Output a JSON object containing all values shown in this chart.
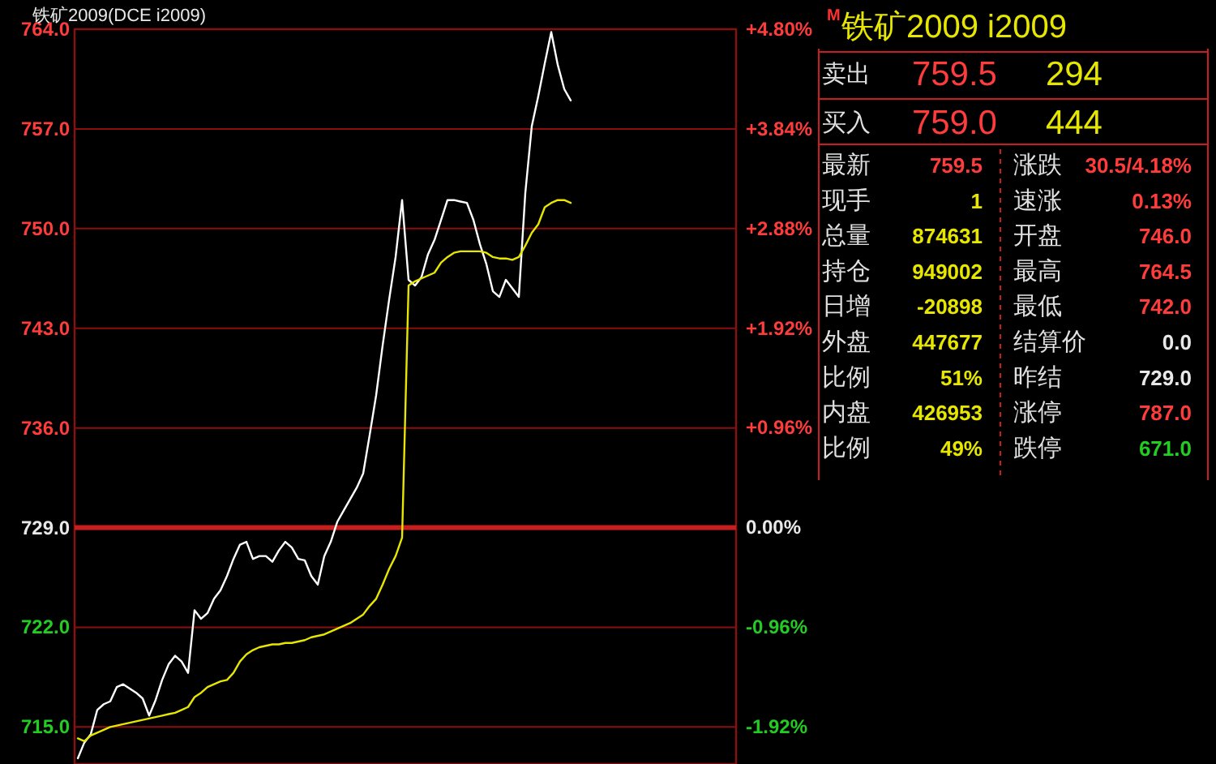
{
  "chart_data": [
    {
      "type": "line",
      "title": "铁矿2009(DCE i2009)",
      "categories": [
        null,
        null,
        null,
        null,
        null,
        null,
        null,
        null,
        null,
        null,
        null,
        null,
        null,
        null,
        null,
        null,
        null,
        null,
        null,
        null,
        null,
        null,
        null,
        null,
        null,
        null,
        null,
        null,
        null,
        null,
        null,
        null,
        null,
        null,
        null,
        null,
        null,
        null,
        null,
        null,
        null,
        null,
        null,
        null,
        null,
        null,
        null,
        null,
        null,
        null,
        null,
        null,
        null,
        null,
        null,
        null,
        null,
        null,
        null,
        null,
        null,
        null,
        null,
        null,
        null,
        null,
        null,
        null,
        null,
        null,
        null,
        null,
        null,
        null,
        null,
        null,
        null,
        null,
        null,
        null,
        null,
        null,
        null,
        null,
        null,
        null,
        null,
        null,
        null,
        null,
        null,
        null,
        null,
        null,
        null,
        null,
        null,
        null,
        null,
        null,
        null,
        null
      ],
      "series": [
        {
          "color": "#ffffff",
          "values": [
            712.8,
            713.9,
            714.5,
            716.2,
            716.6,
            716.8,
            717.8,
            718.0,
            717.7,
            717.4,
            717.0,
            715.8,
            716.9,
            718.3,
            719.4,
            720.0,
            719.6,
            718.8,
            723.2,
            722.6,
            723.0,
            724.0,
            724.6,
            725.6,
            726.8,
            727.8,
            728.0,
            726.8,
            727.0,
            727.0,
            726.6,
            727.4,
            728.0,
            727.6,
            726.8,
            726.7,
            725.6,
            725.0,
            727.0,
            728.0,
            729.4,
            730.2,
            731.0,
            731.8,
            732.8,
            735.5,
            738.3,
            741.8,
            745.0,
            748.0,
            752.0,
            746.4,
            746.0,
            746.6,
            748.2,
            749.2,
            750.6,
            752.0,
            752.0,
            751.9,
            751.8,
            750.6,
            748.9,
            747.5,
            745.6,
            745.2,
            746.4,
            745.8,
            745.2,
            752.5,
            757.2,
            759.3,
            761.6,
            763.8,
            761.5,
            759.8,
            759.0,
            null,
            null,
            null,
            null,
            null,
            null,
            null,
            null,
            null,
            null,
            null,
            null,
            null,
            null,
            null,
            null,
            null,
            null,
            null,
            null,
            null,
            null,
            null,
            null,
            null
          ]
        },
        {
          "color": "#e6e600",
          "values": [
            714.2,
            714.0,
            714.4,
            714.6,
            714.8,
            715.0,
            715.1,
            715.2,
            715.3,
            715.4,
            715.5,
            715.6,
            715.7,
            715.8,
            715.9,
            716.0,
            716.2,
            716.4,
            717.1,
            717.4,
            717.8,
            718.0,
            718.2,
            718.3,
            718.8,
            719.6,
            720.1,
            720.4,
            720.6,
            720.7,
            720.8,
            720.8,
            720.9,
            720.9,
            721.0,
            721.1,
            721.3,
            721.4,
            721.5,
            721.7,
            721.9,
            722.1,
            722.3,
            722.6,
            722.9,
            723.5,
            724.0,
            725.0,
            726.1,
            727.0,
            728.3,
            746.0,
            746.3,
            746.5,
            746.7,
            746.9,
            747.6,
            748.0,
            748.3,
            748.4,
            748.4,
            748.4,
            748.4,
            748.3,
            748.0,
            747.9,
            747.9,
            747.8,
            748.0,
            748.8,
            749.7,
            750.3,
            751.5,
            751.8,
            752.0,
            752.0,
            751.8,
            null,
            null,
            null,
            null,
            null,
            null,
            null,
            null,
            null,
            null,
            null,
            null,
            null,
            null,
            null,
            null,
            null,
            null,
            null,
            null,
            null,
            null,
            null,
            null,
            null
          ]
        }
      ],
      "ylim": [
        712.4,
        764.0
      ],
      "yticks": [
        {
          "value": 764,
          "label": "764.0"
        },
        {
          "value": 757,
          "label": "757.0"
        },
        {
          "value": 750,
          "label": "750.0"
        },
        {
          "value": 743,
          "label": "743.0"
        },
        {
          "value": 736,
          "label": "736.0"
        },
        {
          "value": 729,
          "label": "729.0"
        },
        {
          "value": 722,
          "label": "722.0"
        },
        {
          "value": 715,
          "label": "715.0"
        }
      ],
      "y2lim": [
        -2.28,
        4.8
      ],
      "y2ticks": [
        {
          "value": 4.8,
          "label": "+4.80%"
        },
        {
          "value": 3.84,
          "label": "+3.84%"
        },
        {
          "value": 2.88,
          "label": "+2.88%"
        },
        {
          "value": 1.92,
          "label": "+1.92%"
        },
        {
          "value": 0.96,
          "label": "+0.96%"
        },
        {
          "value": 0,
          "label": "0.00%"
        },
        {
          "value": -0.96,
          "label": "-0.96%"
        },
        {
          "value": -1.92,
          "label": "-1.92%"
        }
      ],
      "ref_lines": [
        {
          "axis": "y",
          "value": 729,
          "color": "#c81e1e"
        }
      ],
      "grid": "y"
    },
    {
      "type": "other",
      "title": "铁矿2009  i2009",
      "annotations": [
        "M",
        "卖出",
        "759.5",
        "294",
        "买入",
        "759.0",
        "444",
        "最新",
        "759.5",
        "涨跌",
        "30.5/4.18%",
        "现手",
        "1",
        "速涨",
        "0.13%",
        "总量",
        "874631",
        "开盘",
        "746.0",
        "持仓",
        "949002",
        "最高",
        "764.5",
        "日增",
        "-20898",
        "最低",
        "742.0",
        "外盘",
        "447677",
        "结算价",
        "0.0",
        "比例",
        "51%",
        "昨结",
        "729.0",
        "内盘",
        "426953",
        "涨停",
        "787.0",
        "比例",
        "49%",
        "跌停",
        "671.0"
      ],
      "colors": [
        "#ff3030",
        "#e0e0e0",
        "#ff3c3c",
        "#e6e600",
        "#e0e0e0",
        "#ff3c3c",
        "#e6e600",
        "#e0e0e0",
        "#ff3c3c",
        "#e0e0e0",
        "#ff3c3c",
        "#e0e0e0",
        "#e6e600",
        "#e0e0e0",
        "#ff3c3c",
        "#e0e0e0",
        "#e6e600",
        "#e0e0e0",
        "#ff3c3c",
        "#e0e0e0",
        "#e6e600",
        "#e0e0e0",
        "#ff3c3c",
        "#e0e0e0",
        "#e6e600",
        "#e0e0e0",
        "#ff3c3c",
        "#e0e0e0",
        "#e6e600",
        "#e0e0e0",
        "#e8e8e8",
        "#e0e0e0",
        "#e6e600",
        "#e0e0e0",
        "#e8e8e8",
        "#e0e0e0",
        "#e6e600",
        "#e0e0e0",
        "#ff3c3c",
        "#e0e0e0",
        "#e6e600",
        "#e0e0e0",
        "#22cc22"
      ]
    }
  ]
}
